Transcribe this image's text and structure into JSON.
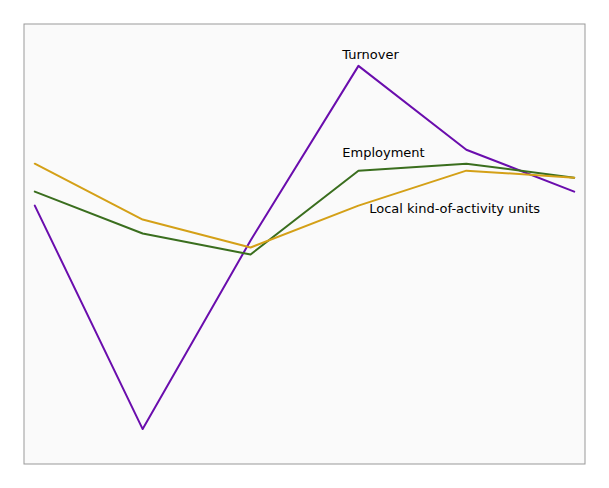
{
  "chart_data": {
    "type": "line",
    "x": [
      0,
      1,
      2,
      3,
      4,
      5
    ],
    "series": [
      {
        "color": "#6a0dad",
        "values": [
          2,
          -30,
          -3,
          22,
          10,
          4
        ]
      },
      {
        "color": "#3a6e1e",
        "values": [
          4,
          -2,
          -5,
          7,
          8,
          6
        ]
      },
      {
        "color": "#d4a017",
        "values": [
          8,
          0,
          -4,
          2,
          7,
          6
        ]
      }
    ],
    "annotations": [
      {
        "text": "Turnover",
        "x": 2.85,
        "y": 23
      },
      {
        "text": "Employment",
        "x": 2.85,
        "y": 9
      },
      {
        "text": "Local kind-of-activity units",
        "x": 3.1,
        "y": 1
      }
    ],
    "xlim": [
      -0.1,
      5.1
    ],
    "ylim": [
      -35,
      28
    ],
    "tick_labels": false
  }
}
